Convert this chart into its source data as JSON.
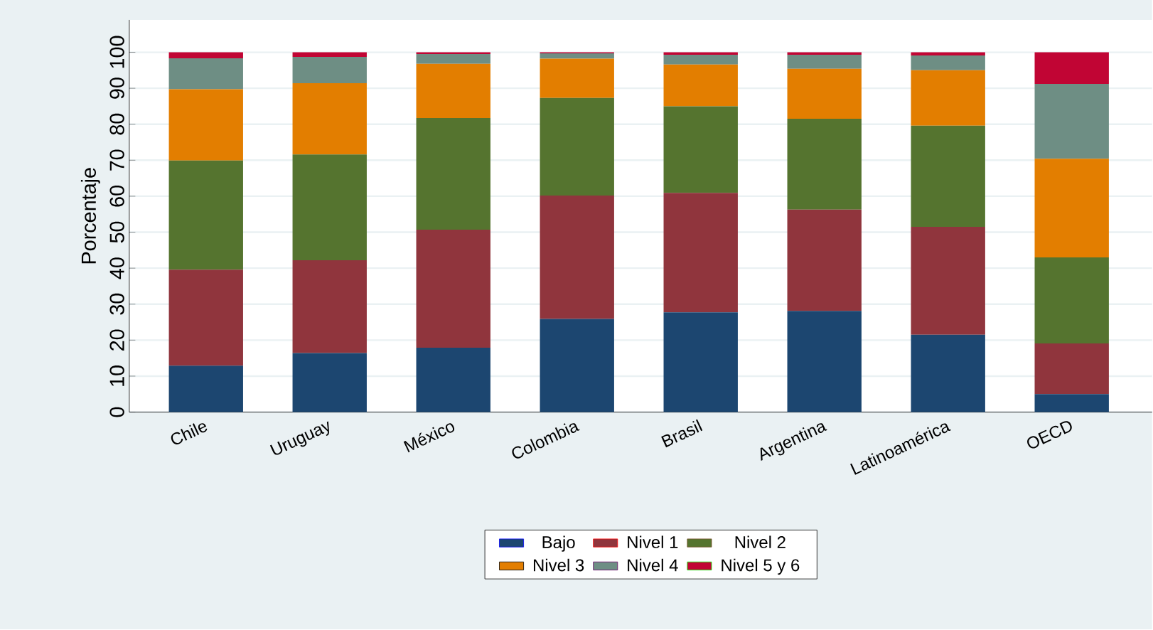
{
  "chart_data": {
    "type": "bar",
    "stacked": true,
    "ylabel": "Porcentaje",
    "categories": [
      "Chile",
      "Uruguay",
      "México",
      "Colombia",
      "Brasil",
      "Argentina",
      "Latinoamérica",
      "OECD"
    ],
    "series": [
      {
        "name": "Bajo",
        "color": "#1c4670",
        "values": [
          12.9,
          16.4,
          17.9,
          25.9,
          27.7,
          28.1,
          21.5,
          5.0
        ]
      },
      {
        "name": "Nivel 1",
        "color": "#90353d",
        "values": [
          26.7,
          25.8,
          32.8,
          34.3,
          33.2,
          28.2,
          30.0,
          14.1
        ]
      },
      {
        "name": "Nivel 2",
        "color": "#55742f",
        "values": [
          30.3,
          29.4,
          31.0,
          27.1,
          24.1,
          25.2,
          28.1,
          23.9
        ]
      },
      {
        "name": "Nivel 3",
        "color": "#e37e00",
        "values": [
          19.8,
          19.8,
          15.1,
          10.9,
          11.6,
          13.9,
          15.4,
          27.4
        ]
      },
      {
        "name": "Nivel 4",
        "color": "#6e8e84",
        "values": [
          8.6,
          7.3,
          2.7,
          1.5,
          2.7,
          3.9,
          4.1,
          20.8
        ]
      },
      {
        "name": "Nivel 5 y 6",
        "color": "#c10534",
        "values": [
          1.7,
          1.3,
          0.5,
          0.3,
          0.7,
          0.7,
          0.9,
          8.8
        ]
      }
    ],
    "ylim": [
      0,
      109
    ],
    "yticks": [
      0,
      10,
      20,
      30,
      40,
      50,
      60,
      70,
      80,
      90,
      100
    ],
    "grid": "y",
    "legend": "bottom"
  }
}
